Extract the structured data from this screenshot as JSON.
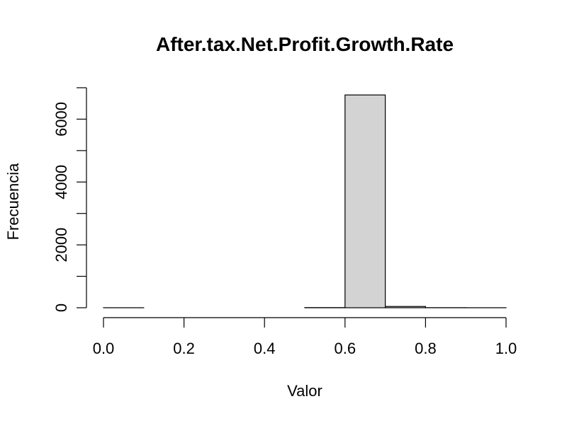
{
  "chart_data": {
    "type": "bar",
    "title": "After.tax.Net.Profit.Growth.Rate",
    "xlabel": "Valor",
    "ylabel": "Frecuencia",
    "bins": [
      {
        "from": 0.0,
        "to": 0.1,
        "count": 1
      },
      {
        "from": 0.1,
        "to": 0.2,
        "count": 0
      },
      {
        "from": 0.2,
        "to": 0.3,
        "count": 0
      },
      {
        "from": 0.3,
        "to": 0.4,
        "count": 0
      },
      {
        "from": 0.4,
        "to": 0.5,
        "count": 0
      },
      {
        "from": 0.5,
        "to": 0.6,
        "count": 5
      },
      {
        "from": 0.6,
        "to": 0.7,
        "count": 6770
      },
      {
        "from": 0.7,
        "to": 0.8,
        "count": 40
      },
      {
        "from": 0.8,
        "to": 0.9,
        "count": 3
      },
      {
        "from": 0.9,
        "to": 1.0,
        "count": 1
      }
    ],
    "xlim": [
      0,
      1
    ],
    "ylim": [
      0,
      7000
    ],
    "x_ticks": [
      0.0,
      0.2,
      0.4,
      0.6,
      0.8,
      1.0
    ],
    "x_tick_labels": [
      "0.0",
      "0.2",
      "0.4",
      "0.6",
      "0.8",
      "1.0"
    ],
    "y_ticks": [
      0,
      1000,
      2000,
      3000,
      4000,
      5000,
      6000,
      7000
    ],
    "y_tick_labels": [
      "0",
      "2000",
      "4000",
      "6000"
    ],
    "y_tick_labels_values": [
      0,
      2000,
      4000,
      6000
    ],
    "grid": false,
    "legend": "none",
    "colors": {
      "bar_fill": "#d3d3d3",
      "bar_stroke": "#000000",
      "axis": "#000000",
      "background": "#ffffff"
    }
  }
}
